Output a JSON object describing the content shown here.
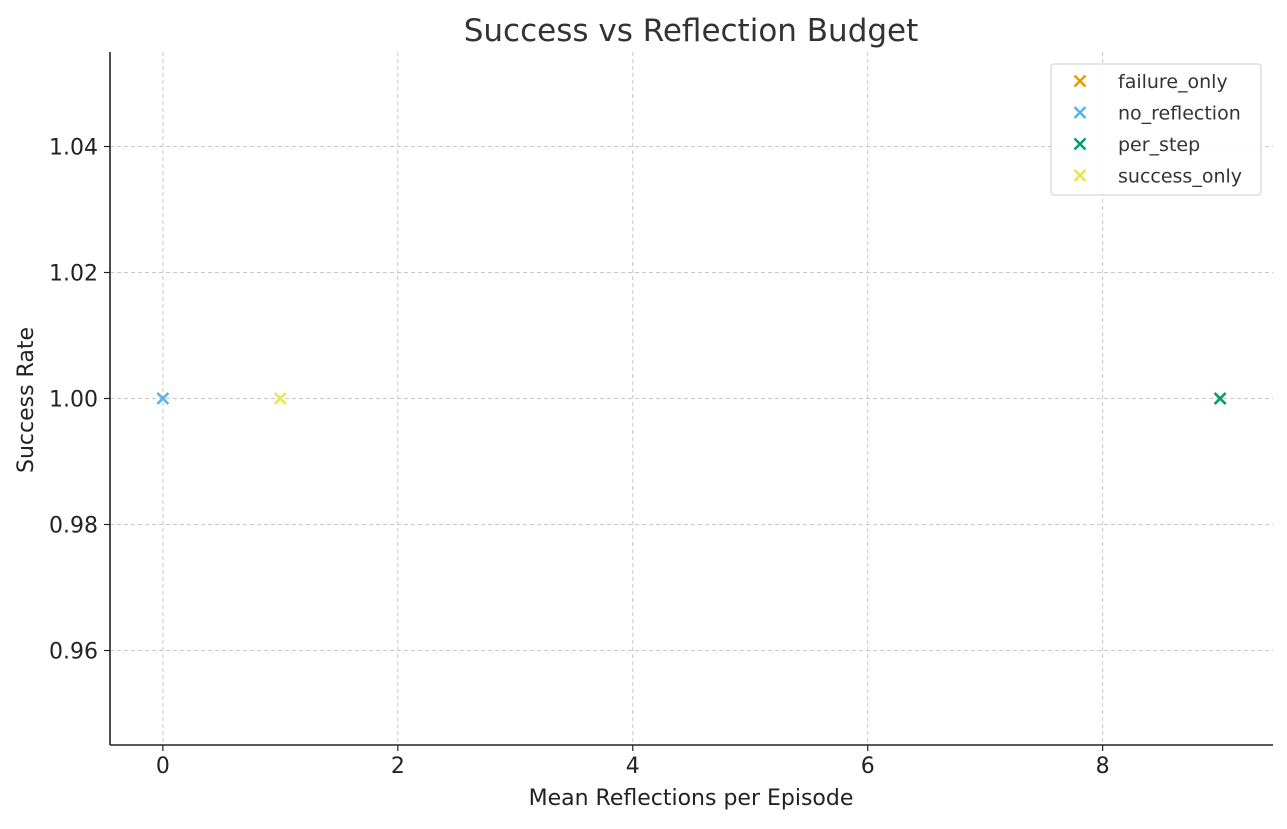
{
  "chart_data": {
    "type": "scatter",
    "title": "Success vs Reflection Budget",
    "xlabel": "Mean Reflections per Episode",
    "ylabel": "Success Rate",
    "xlim": [
      -0.45,
      9.45
    ],
    "ylim": [
      0.945,
      1.055
    ],
    "xticks": [
      0,
      2,
      4,
      6,
      8
    ],
    "yticks": [
      0.96,
      0.98,
      1.0,
      1.02,
      1.04
    ],
    "ytick_labels": [
      "0.96",
      "0.98",
      "1.00",
      "1.02",
      "1.04"
    ],
    "grid": true,
    "legend_position": "top-right",
    "marker": "x",
    "series": [
      {
        "name": "failure_only",
        "color": "#E69F00",
        "points": [
          [
            9,
            1.0
          ]
        ]
      },
      {
        "name": "no_reflection",
        "color": "#56B4E9",
        "points": [
          [
            0,
            1.0
          ]
        ]
      },
      {
        "name": "per_step",
        "color": "#009E73",
        "points": [
          [
            9,
            1.0
          ]
        ]
      },
      {
        "name": "success_only",
        "color": "#F0E442",
        "points": [
          [
            1,
            1.0
          ]
        ]
      }
    ]
  }
}
